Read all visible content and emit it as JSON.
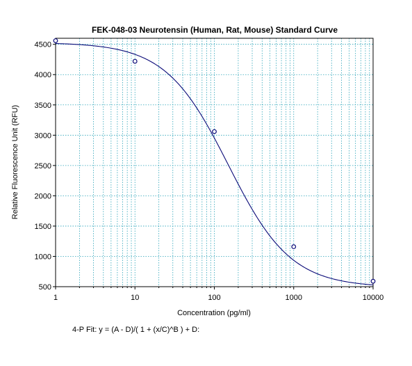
{
  "chart_data": {
    "type": "scatter",
    "title": "FEK-048-03 Neurotensin (Human, Rat, Mouse) Standard Curve",
    "xlabel": "Concentration (pg/ml)",
    "ylabel": "Relative Fluorescence Unit (RFU)",
    "x_scale": "log",
    "xlim": [
      1,
      10000
    ],
    "ylim": [
      500,
      4600
    ],
    "x_ticks": [
      1,
      10,
      100,
      1000,
      10000
    ],
    "x_tick_labels": [
      "1",
      "10",
      "100",
      "1000",
      "10000"
    ],
    "y_ticks": [
      500,
      1000,
      1500,
      2000,
      2500,
      3000,
      3500,
      4000,
      4500
    ],
    "y_tick_labels": [
      "500",
      "1000",
      "1500",
      "2000",
      "2500",
      "3000",
      "3500",
      "4000",
      "4500"
    ],
    "grid": true,
    "series": [
      {
        "type": "scatter",
        "x": [
          1,
          10,
          100,
          1000,
          10000
        ],
        "y": [
          4560,
          4220,
          3060,
          1160,
          590
        ]
      },
      {
        "type": "line",
        "fit": "4-parameter logistic",
        "params": {
          "A": 4530,
          "B": 1.1,
          "C": 150,
          "D": 490
        }
      }
    ],
    "fit_label": "4-P Fit:  y = (A - D)/( 1 + (x/C)^B ) + D:"
  },
  "colors": {
    "curve": "#0a0a78",
    "grid": "#2aa3b8",
    "frame": "#000000"
  }
}
